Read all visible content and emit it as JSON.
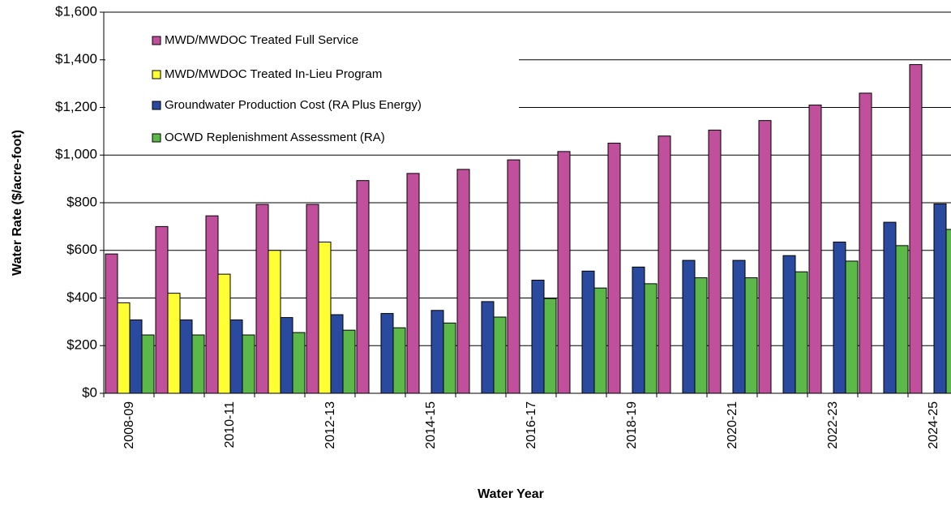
{
  "chart_data": {
    "type": "bar",
    "y_label": "Water Rate ($/acre-foot)",
    "x_label": "Water Year",
    "categories": [
      "2008-09",
      null,
      "2010-11",
      null,
      "2012-13",
      null,
      "2014-15",
      null,
      "2016-17",
      null,
      "2018-19",
      null,
      "2020-21",
      null,
      "2022-23",
      null,
      "2024-25"
    ],
    "series": [
      {
        "name": "MWD/MWDOC Treated Full Service",
        "color": "#c0509c",
        "values": [
          585,
          700,
          745,
          793,
          793,
          893,
          923,
          940,
          980,
          1015,
          1050,
          1080,
          1105,
          1145,
          1210,
          1260,
          1380
        ]
      },
      {
        "name": "MWD/MWDOC Treated In-Lieu Program",
        "color": "#ffff33",
        "values": [
          380,
          420,
          500,
          600,
          635,
          null,
          null,
          null,
          null,
          null,
          null,
          null,
          null,
          null,
          null,
          null,
          null
        ]
      },
      {
        "name": "Groundwater Production Cost (RA Plus Energy)",
        "color": "#2a4aa0",
        "values": [
          308,
          308,
          308,
          318,
          330,
          335,
          348,
          385,
          475,
          513,
          530,
          558,
          558,
          578,
          635,
          718,
          795
        ]
      },
      {
        "name": "OCWD Replenishment Assessment (RA)",
        "color": "#5db84a",
        "values": [
          245,
          245,
          245,
          255,
          265,
          275,
          295,
          320,
          398,
          442,
          460,
          485,
          485,
          510,
          555,
          620,
          688
        ]
      }
    ],
    "ylim": [
      0,
      1600
    ],
    "yticks": [
      {
        "value": 0,
        "label": "$0"
      },
      {
        "value": 200,
        "label": "$200"
      },
      {
        "value": 400,
        "label": "$400"
      },
      {
        "value": 600,
        "label": "$600"
      },
      {
        "value": 800,
        "label": "$800"
      },
      {
        "value": 1000,
        "label": "$1,000"
      },
      {
        "value": 1200,
        "label": "$1,200"
      },
      {
        "value": 1400,
        "label": "$1,400"
      },
      {
        "value": 1600,
        "label": "$1,600"
      }
    ],
    "grid": true
  }
}
